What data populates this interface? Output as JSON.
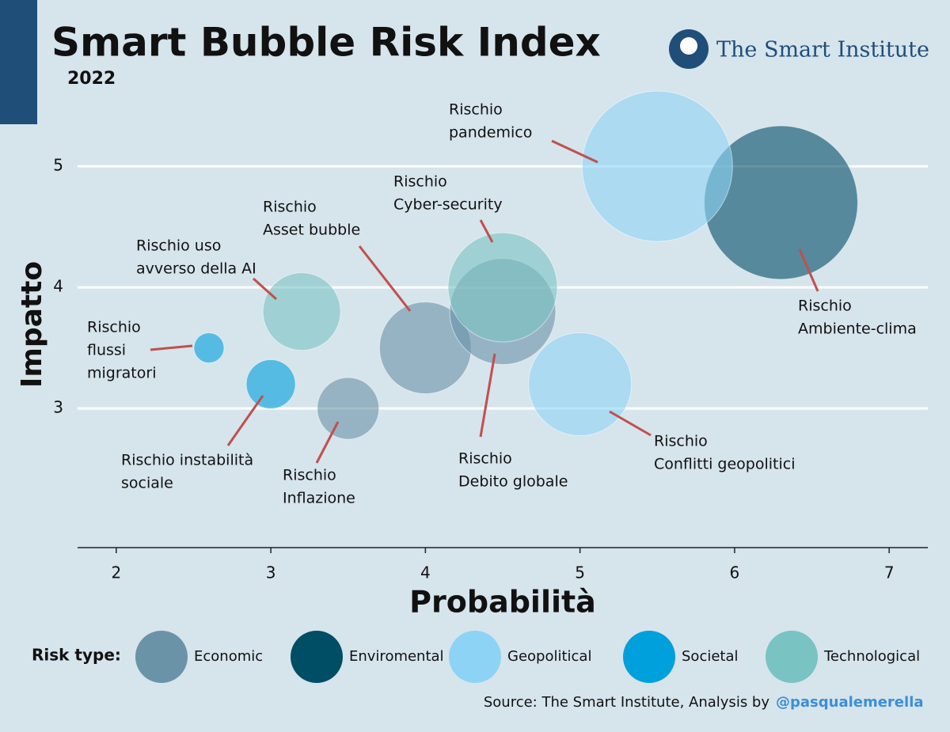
{
  "chart_data": {
    "type": "bubble",
    "title": "Smart Bubble Risk Index",
    "subtitle": "2022",
    "brand": "The Smart Institute",
    "x_label": "Probabilità",
    "y_label": "Impatto",
    "legend_title": "Risk type:",
    "source": "Source: The Smart Institute, Analysis by",
    "source_handle": "@pasqualemerella",
    "xlim": [
      1.75,
      7.25
    ],
    "ylim": [
      1.85,
      5.7
    ],
    "xticks": [
      2,
      3,
      4,
      5,
      6,
      7
    ],
    "yticks": [
      3,
      4,
      5
    ],
    "grid": true,
    "series": [
      {
        "name": "Economic",
        "color": "#6b93a8",
        "points": [
          {
            "label": [
              "Rischio",
              "Inflazione"
            ],
            "x": 3.5,
            "y": 3.0,
            "size": 3.9
          },
          {
            "label": [
              "Rischio",
              "Asset bubble"
            ],
            "x": 4,
            "y": 3.5,
            "size": 5.8
          },
          {
            "label": [
              "Rischio",
              "Debito globale"
            ],
            "x": 4.5,
            "y": 3.8,
            "size": 6.7
          }
        ]
      },
      {
        "name": "Enviromental",
        "color": "#004d66",
        "points": [
          {
            "label": [
              "Rischio",
              "Ambiente-clima"
            ],
            "x": 6.3,
            "y": 4.7,
            "size": 9.7
          }
        ]
      },
      {
        "name": "Geopolitical",
        "color": "#8dd3f5",
        "points": [
          {
            "label": [
              "Rischio",
              "Conflitti geopolitici"
            ],
            "x": 5,
            "y": 3.2,
            "size": 6.5
          },
          {
            "label": [
              "Rischio",
              "pandemico"
            ],
            "x": 5.5,
            "y": 5.0,
            "size": 9.5
          }
        ]
      },
      {
        "name": "Societal",
        "color": "#00a0dc",
        "points": [
          {
            "label": [
              "Rischio",
              "flussi",
              "migratori"
            ],
            "x": 2.6,
            "y": 3.5,
            "size": 1.9
          },
          {
            "label": [
              "Rischio instabilità",
              "sociale"
            ],
            "x": 3,
            "y": 3.2,
            "size": 3.1
          }
        ]
      },
      {
        "name": "Technological",
        "color": "#79c3c3",
        "points": [
          {
            "label": [
              "Rischio uso",
              "avverso della AI"
            ],
            "x": 3.2,
            "y": 3.8,
            "size": 4.9
          },
          {
            "label": [
              "Rischio",
              "Cyber-security"
            ],
            "x": 4.5,
            "y": 4.0,
            "size": 6.9
          }
        ]
      }
    ]
  }
}
